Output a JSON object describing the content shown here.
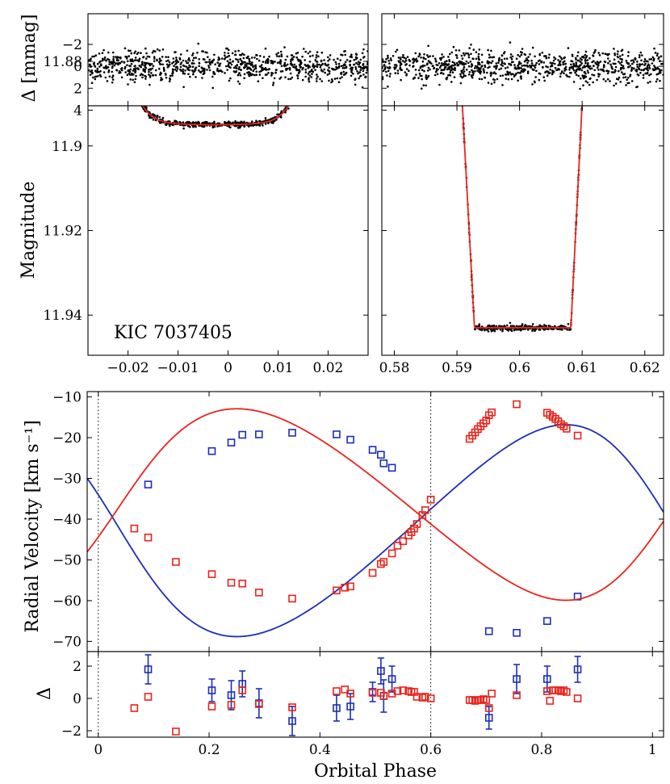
{
  "figure": {
    "object_label": "KIC 7037405"
  },
  "chart_data": [
    {
      "id": "primary_eclipse",
      "type": "scatter",
      "xlim": [
        -0.028,
        0.028
      ],
      "ylim_mag": [
        11.8905,
        11.9495
      ],
      "ylim_resid": [
        -4.8,
        3.6
      ],
      "ylabel": "Magnitude",
      "resid_label": "Δ [mmag]",
      "xticks": [
        -0.02,
        -0.01,
        0,
        0.01,
        0.02
      ],
      "xtick_labels": [
        "−0.02",
        "−0.01",
        "0",
        "0.01",
        "0.02"
      ],
      "yticks": [
        11.88,
        11.9,
        11.92,
        11.94
      ],
      "ytick_labels": [
        "11.88",
        "11.9",
        "11.92",
        "11.94"
      ],
      "resid_ticks": [
        -2,
        0,
        2,
        4
      ],
      "resid_tick_labels": [
        "−2",
        "0",
        "2",
        "4"
      ],
      "model": {
        "color": "#e8241c",
        "out_of_eclipse": 11.875,
        "bottom": 11.895,
        "ingress_start": -0.021,
        "egress_end": 0.016,
        "shape": "u-shaped transit"
      },
      "data_color": "#000000",
      "annotation": "KIC 7037405"
    },
    {
      "id": "secondary_eclipse",
      "type": "scatter",
      "xlim": [
        0.578,
        0.623
      ],
      "ylim_mag": [
        11.8905,
        11.9495
      ],
      "ylim_resid": [
        -4.8,
        3.6
      ],
      "xticks": [
        0.58,
        0.59,
        0.6,
        0.61,
        0.62
      ],
      "xtick_labels": [
        "0.58",
        "0.59",
        "0.6",
        "0.61",
        "0.62"
      ],
      "model": {
        "color": "#e8241c",
        "out_of_eclipse": 11.875,
        "bottom": 11.943,
        "ingress": [
          0.5903,
          0.5928
        ],
        "egress": [
          0.6082,
          0.6105
        ],
        "shape": "flat-bottomed occultation"
      },
      "data_color": "#000000"
    },
    {
      "id": "radial_velocity",
      "type": "scatter",
      "xlabel": "Orbital Phase",
      "ylabel": "Radial Velocity [km s⁻¹]",
      "resid_label": "Δ",
      "xlim": [
        -0.02,
        1.02
      ],
      "ylim": [
        -72.5,
        -8.7
      ],
      "ylim_resid": [
        -2.4,
        2.9
      ],
      "xticks": [
        0,
        0.2,
        0.4,
        0.6,
        0.8,
        1
      ],
      "xtick_labels": [
        "0",
        "0.2",
        "0.4",
        "0.6",
        "0.8",
        "1"
      ],
      "yticks": [
        -10,
        -20,
        -30,
        -40,
        -50,
        -60,
        -70
      ],
      "ytick_labels": [
        "−10",
        "−20",
        "−30",
        "−40",
        "−50",
        "−60",
        "−70"
      ],
      "resid_ticks": [
        2,
        0,
        -2
      ],
      "resid_tick_labels": [
        "2",
        "0",
        "−2"
      ],
      "vlines": [
        0,
        0.6
      ],
      "series": [
        {
          "name": "primary",
          "color": "#1c2fb8",
          "phase": [
            0.09,
            0.205,
            0.24,
            0.26,
            0.29,
            0.35,
            0.43,
            0.455,
            0.495,
            0.51,
            0.515,
            0.53,
            0.705,
            0.755,
            0.81,
            0.865
          ],
          "rv": [
            -31.5,
            -23.3,
            -21.2,
            -19.3,
            -19.2,
            -18.8,
            -19.2,
            -20.5,
            -23.0,
            -24.2,
            -26.3,
            -27.4,
            -67.5,
            -67.9,
            -65.0,
            -59.0
          ],
          "resid": [
            1.8,
            0.5,
            0.2,
            0.9,
            -0.3,
            -1.4,
            -0.6,
            -0.5,
            0.4,
            1.7,
            0.15,
            1.2,
            -1.2,
            1.2,
            1.2,
            1.8
          ],
          "err": [
            0.9,
            0.7,
            0.9,
            0.8,
            0.9,
            0.9,
            0.8,
            0.8,
            0.6,
            0.8,
            1.0,
            0.8,
            0.7,
            0.9,
            0.8,
            0.8
          ],
          "model": {
            "K": 26.0,
            "gamma": -43.5,
            "e": 0.15,
            "omega_deg": 80
          }
        },
        {
          "name": "secondary",
          "color": "#e8241c",
          "phase": [
            0.065,
            0.09,
            0.14,
            0.205,
            0.24,
            0.26,
            0.29,
            0.35,
            0.43,
            0.445,
            0.455,
            0.495,
            0.51,
            0.515,
            0.53,
            0.54,
            0.55,
            0.56,
            0.565,
            0.57,
            0.575,
            0.585,
            0.59,
            0.6,
            0.67,
            0.675,
            0.68,
            0.685,
            0.69,
            0.695,
            0.7,
            0.705,
            0.71,
            0.755,
            0.81,
            0.815,
            0.82,
            0.825,
            0.83,
            0.835,
            0.84,
            0.845,
            0.865
          ],
          "rv": [
            -42.3,
            -44.5,
            -50.5,
            -53.5,
            -55.6,
            -55.8,
            -58.0,
            -59.5,
            -57.5,
            -56.8,
            -56.5,
            -53.2,
            -51.0,
            -50.5,
            -48.4,
            -46.5,
            -45.4,
            -44.0,
            -43.2,
            -42.3,
            -41.2,
            -39.0,
            -37.8,
            -35.2,
            -20.3,
            -19.5,
            -18.7,
            -17.9,
            -17.2,
            -16.5,
            -15.8,
            -14.5,
            -13.8,
            -11.8,
            -13.9,
            -14.4,
            -14.9,
            -15.4,
            -16.0,
            -16.7,
            -17.2,
            -17.8,
            -19.5
          ],
          "resid": [
            -0.6,
            0.1,
            -2.05,
            -0.5,
            -0.4,
            0.5,
            -0.35,
            -0.55,
            0.45,
            0.55,
            0.3,
            0.35,
            0.35,
            0.15,
            0.3,
            0.45,
            0.5,
            0.45,
            0.4,
            0.4,
            0.1,
            0.05,
            0.1,
            0.0,
            -0.1,
            -0.1,
            -0.15,
            -0.1,
            -0.1,
            -0.05,
            -0.1,
            -0.6,
            0.3,
            0.2,
            0.45,
            -0.15,
            0.5,
            0.5,
            0.5,
            0.45,
            0.5,
            0.4,
            0.0
          ],
          "model": {
            "K": 23.5,
            "gamma": -35.8,
            "e": 0.15,
            "omega_deg": 260
          }
        }
      ]
    }
  ]
}
